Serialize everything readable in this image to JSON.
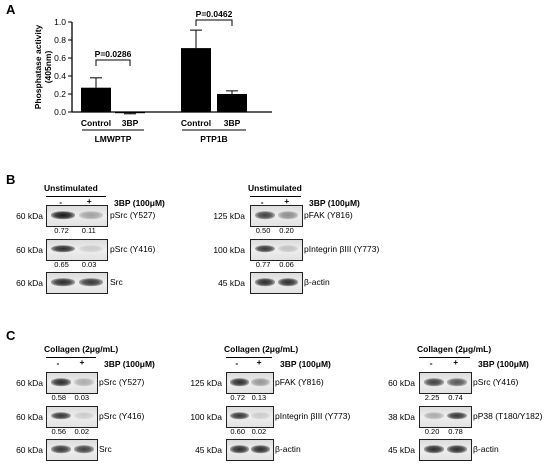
{
  "panels": {
    "a": "A",
    "b": "B",
    "c": "C"
  },
  "chart_data": {
    "type": "bar",
    "ylabel": "Phosphatase activity (405nm)",
    "ylim": [
      0.0,
      1.0
    ],
    "yticks": [
      "0.0",
      "0.2",
      "0.4",
      "0.6",
      "0.8",
      "1.0"
    ],
    "categories": [
      "Control",
      "3BP",
      "Control",
      "3BP"
    ],
    "values": [
      0.27,
      -0.01,
      0.71,
      0.2
    ],
    "errors": [
      0.11,
      0.01,
      0.2,
      0.035
    ],
    "groups": [
      {
        "name": "LMWPTP",
        "members": [
          0,
          1
        ],
        "pvalue": "P=0.0286"
      },
      {
        "name": "PTP1B",
        "members": [
          2,
          3
        ],
        "pvalue": "P=0.0462"
      }
    ],
    "grid": false
  },
  "b": {
    "left": {
      "header": "Unstimulated",
      "minus": "-",
      "plus": "+",
      "treatment": "3BP (100μM)",
      "rows": [
        {
          "kda": "60 kDa",
          "label": "pSrc (Y527)",
          "quant": [
            "0.72",
            "0.11"
          ]
        },
        {
          "kda": "60 kDa",
          "label": "pSrc (Y416)",
          "quant": [
            "0.65",
            "0.03"
          ]
        },
        {
          "kda": "60 kDa",
          "label": "Src",
          "quant": []
        }
      ]
    },
    "right": {
      "header": "Unstimulated",
      "minus": "-",
      "plus": "+",
      "treatment": "3BP (100μM)",
      "rows": [
        {
          "kda": "125 kDa",
          "label": "pFAK (Y816)",
          "quant": [
            "0.50",
            "0.20"
          ]
        },
        {
          "kda": "100 kDa",
          "label": "pIntegrin βIII (Y773)",
          "quant": [
            "0.77",
            "0.06"
          ]
        },
        {
          "kda": "45 kDa",
          "label": "β-actin",
          "quant": []
        }
      ]
    }
  },
  "c": {
    "left": {
      "header": "Collagen (2μg/mL)",
      "minus": "-",
      "plus": "+",
      "treatment": "3BP (100μM)",
      "rows": [
        {
          "kda": "60 kDa",
          "label": "pSrc (Y527)",
          "quant": [
            "0.58",
            "0.03"
          ]
        },
        {
          "kda": "60 kDa",
          "label": "pSrc (Y416)",
          "quant": [
            "0.56",
            "0.02"
          ]
        },
        {
          "kda": "60 kDa",
          "label": "Src",
          "quant": []
        }
      ]
    },
    "mid": {
      "header": "Collagen (2μg/mL)",
      "minus": "-",
      "plus": "+",
      "treatment": "3BP (100μM)",
      "rows": [
        {
          "kda": "125 kDa",
          "label": "pFAK (Y816)",
          "quant": [
            "0.72",
            "0.13"
          ]
        },
        {
          "kda": "100 kDa",
          "label": "pIntegrin βIII (Y773)",
          "quant": [
            "0.60",
            "0.02"
          ]
        },
        {
          "kda": "45 kDa",
          "label": "β-actin",
          "quant": []
        }
      ]
    },
    "right": {
      "header": "Collagen (2μg/mL)",
      "minus": "-",
      "plus": "+",
      "treatment": "3BP (100μM)",
      "rows": [
        {
          "kda": "60 kDa",
          "label": "pSrc (Y416)",
          "quant": [
            "2.25",
            "0.74"
          ]
        },
        {
          "kda": "38 kDa",
          "label": "pP38 (T180/Y182)",
          "quant": [
            "0.20",
            "0.78"
          ]
        },
        {
          "kda": "45 kDa",
          "label": "β-actin",
          "quant": []
        }
      ]
    }
  },
  "blot_style": {
    "band_intensity": {
      "b.left": [
        [
          1.0,
          0.35
        ],
        [
          0.9,
          0.15
        ],
        [
          0.9,
          0.85
        ]
      ],
      "b.right": [
        [
          0.8,
          0.45
        ],
        [
          0.85,
          0.2
        ],
        [
          0.9,
          0.9
        ]
      ],
      "c.left": [
        [
          0.9,
          0.3
        ],
        [
          0.85,
          0.15
        ],
        [
          0.85,
          0.8
        ]
      ],
      "c.mid": [
        [
          0.9,
          0.4
        ],
        [
          0.85,
          0.15
        ],
        [
          0.9,
          0.9
        ]
      ],
      "c.right": [
        [
          0.8,
          0.7
        ],
        [
          0.3,
          0.85
        ],
        [
          0.9,
          0.9
        ]
      ]
    }
  }
}
